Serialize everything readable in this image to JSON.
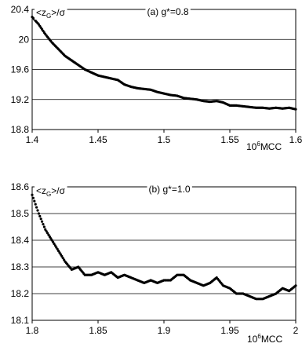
{
  "chart_data": [
    {
      "type": "scatter",
      "title": "(a) g*=0.8",
      "ylabel_main": "<z",
      "ylabel_sub": "G",
      "ylabel_rest": ">/σ",
      "xlabel_prefix": "10",
      "xlabel_sup": "6",
      "xlabel_rest": "MCC",
      "xlim": [
        1.4,
        1.6
      ],
      "ylim": [
        18.8,
        20.4
      ],
      "xticks": [
        "1.4",
        "1.45",
        "1.5",
        "1.55",
        "1.6"
      ],
      "yticks": [
        "18.8",
        "19.2",
        "19.6",
        "20",
        "20.4"
      ],
      "grid": "horizontal",
      "x": [
        1.4,
        1.405,
        1.41,
        1.415,
        1.42,
        1.425,
        1.43,
        1.435,
        1.44,
        1.445,
        1.45,
        1.455,
        1.46,
        1.465,
        1.47,
        1.475,
        1.48,
        1.485,
        1.49,
        1.495,
        1.5,
        1.505,
        1.51,
        1.515,
        1.52,
        1.525,
        1.53,
        1.535,
        1.54,
        1.545,
        1.55,
        1.555,
        1.56,
        1.565,
        1.57,
        1.575,
        1.58,
        1.585,
        1.59,
        1.595,
        1.6
      ],
      "y": [
        20.3,
        20.2,
        20.07,
        19.96,
        19.87,
        19.78,
        19.72,
        19.66,
        19.6,
        19.56,
        19.52,
        19.5,
        19.48,
        19.46,
        19.4,
        19.37,
        19.35,
        19.34,
        19.33,
        19.3,
        19.28,
        19.26,
        19.25,
        19.22,
        19.21,
        19.2,
        19.18,
        19.17,
        19.18,
        19.16,
        19.12,
        19.12,
        19.11,
        19.1,
        19.09,
        19.09,
        19.08,
        19.09,
        19.08,
        19.09,
        19.07
      ]
    },
    {
      "type": "scatter",
      "title": "(b) g*=1.0",
      "ylabel_main": "<z",
      "ylabel_sub": "G",
      "ylabel_rest": ">/σ",
      "xlabel_prefix": "10",
      "xlabel_sup": "6",
      "xlabel_rest": "MCC",
      "xlim": [
        1.8,
        2.0
      ],
      "ylim": [
        18.1,
        18.6
      ],
      "xticks": [
        "1.8",
        "1.85",
        "1.9",
        "1.95",
        "2"
      ],
      "yticks": [
        "18.1",
        "18.2",
        "18.3",
        "18.4",
        "18.5",
        "18.6"
      ],
      "grid": "horizontal",
      "x": [
        1.8,
        1.805,
        1.81,
        1.815,
        1.82,
        1.825,
        1.83,
        1.835,
        1.84,
        1.845,
        1.85,
        1.855,
        1.86,
        1.865,
        1.87,
        1.875,
        1.88,
        1.885,
        1.89,
        1.895,
        1.9,
        1.905,
        1.91,
        1.915,
        1.92,
        1.925,
        1.93,
        1.935,
        1.94,
        1.945,
        1.95,
        1.955,
        1.96,
        1.965,
        1.97,
        1.975,
        1.98,
        1.985,
        1.99,
        1.995,
        2.0
      ],
      "y": [
        18.57,
        18.5,
        18.44,
        18.4,
        18.36,
        18.32,
        18.29,
        18.3,
        18.27,
        18.27,
        18.28,
        18.27,
        18.28,
        18.26,
        18.27,
        18.26,
        18.25,
        18.24,
        18.25,
        18.24,
        18.25,
        18.25,
        18.27,
        18.27,
        18.25,
        18.24,
        18.23,
        18.24,
        18.26,
        18.23,
        18.22,
        18.2,
        18.2,
        18.19,
        18.18,
        18.18,
        18.19,
        18.2,
        18.22,
        18.21,
        18.23
      ]
    }
  ]
}
